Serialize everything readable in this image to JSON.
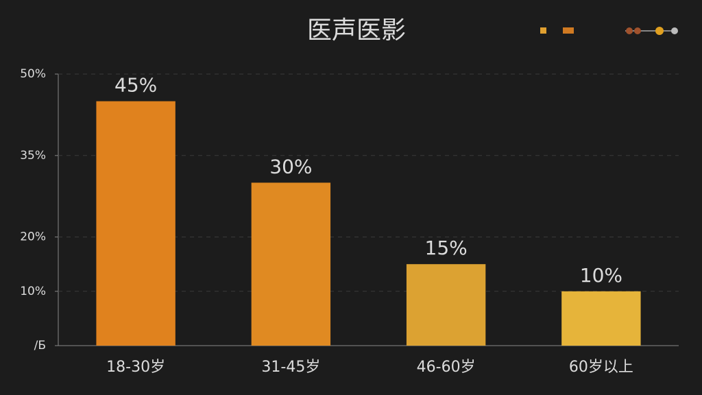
{
  "chart_data": {
    "type": "bar",
    "title": "医声医影",
    "categories": [
      "18-30岁",
      "31-45岁",
      "46-60岁",
      "60岁以上"
    ],
    "values": [
      45,
      30,
      15,
      10
    ],
    "value_labels": [
      "45%",
      "30%",
      "15%",
      "10%"
    ],
    "colors": [
      "#e0821e",
      "#e08a22",
      "#dca232",
      "#e6b43a"
    ],
    "ylim": [
      0,
      50
    ],
    "yticks": [
      {
        "value": 0,
        "label": "/Ƃ"
      },
      {
        "value": 10,
        "label": "10%"
      },
      {
        "value": 20,
        "label": "20%"
      },
      {
        "value": 35,
        "label": "35%"
      },
      {
        "value": 50,
        "label": "50%"
      }
    ],
    "grid": true
  }
}
